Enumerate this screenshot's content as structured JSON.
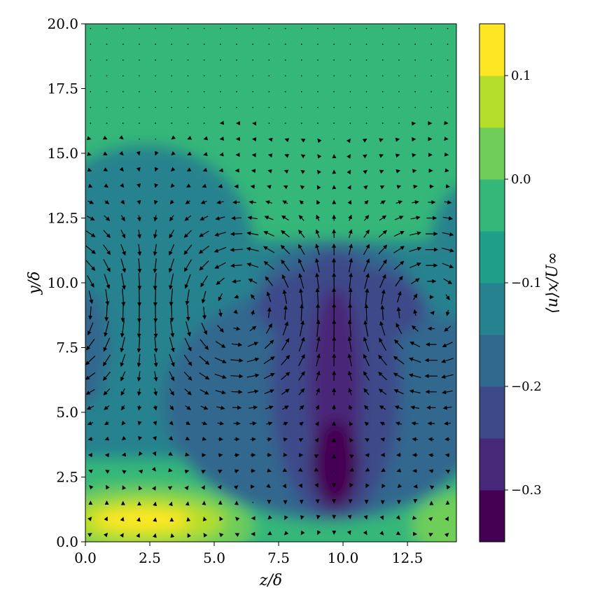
{
  "chart_data": {
    "type": "contourf+quiver",
    "xlabel": "z/δ",
    "ylabel": "y/δ",
    "colorbar_label": "⟨u⟩x/U∞",
    "xlim": [
      0,
      14.4
    ],
    "ylim": [
      0,
      20
    ],
    "x_ticks": [
      "0.0",
      "2.5",
      "5.0",
      "7.5",
      "10.0",
      "12.5"
    ],
    "y_ticks": [
      "0.0",
      "2.5",
      "5.0",
      "7.5",
      "10.0",
      "12.5",
      "15.0",
      "17.5",
      "20.0"
    ],
    "colorbar_ticks": [
      "0.1",
      "0.0",
      "−0.1",
      "−0.2",
      "−0.3"
    ],
    "colorbar_tick_values": [
      0.1,
      0.0,
      -0.1,
      -0.2,
      -0.3
    ],
    "colorbar_range": [
      -0.35,
      0.15
    ],
    "colorbar_levels": [
      -0.35,
      -0.3,
      -0.25,
      -0.2,
      -0.15,
      -0.1,
      -0.05,
      0.0,
      0.05,
      0.1,
      0.15
    ],
    "colormap": [
      "#440154",
      "#482878",
      "#3e4989",
      "#31688e",
      "#26828e",
      "#1f9e89",
      "#35b779",
      "#6ece58",
      "#b5de2b",
      "#fde725"
    ],
    "grid": false,
    "features": [
      {
        "name": "free-stream",
        "y_range": [
          13,
          20
        ],
        "value": -0.05
      },
      {
        "name": "low-speed core",
        "center": [
          9.7,
          3.0
        ],
        "value": -0.32
      },
      {
        "name": "low-speed plume",
        "center": [
          9.7,
          7.0
        ],
        "value": -0.28
      },
      {
        "name": "near-wall high-speed streak",
        "center": [
          2.3,
          0.8
        ],
        "value": 0.12
      },
      {
        "name": "near-wall high-speed streak (periodic)",
        "center": [
          14.4,
          0.8
        ],
        "value": 0.05
      },
      {
        "name": "secondary high-speed streak",
        "center": [
          2.5,
          5.0
        ],
        "value": -0.18
      }
    ]
  }
}
